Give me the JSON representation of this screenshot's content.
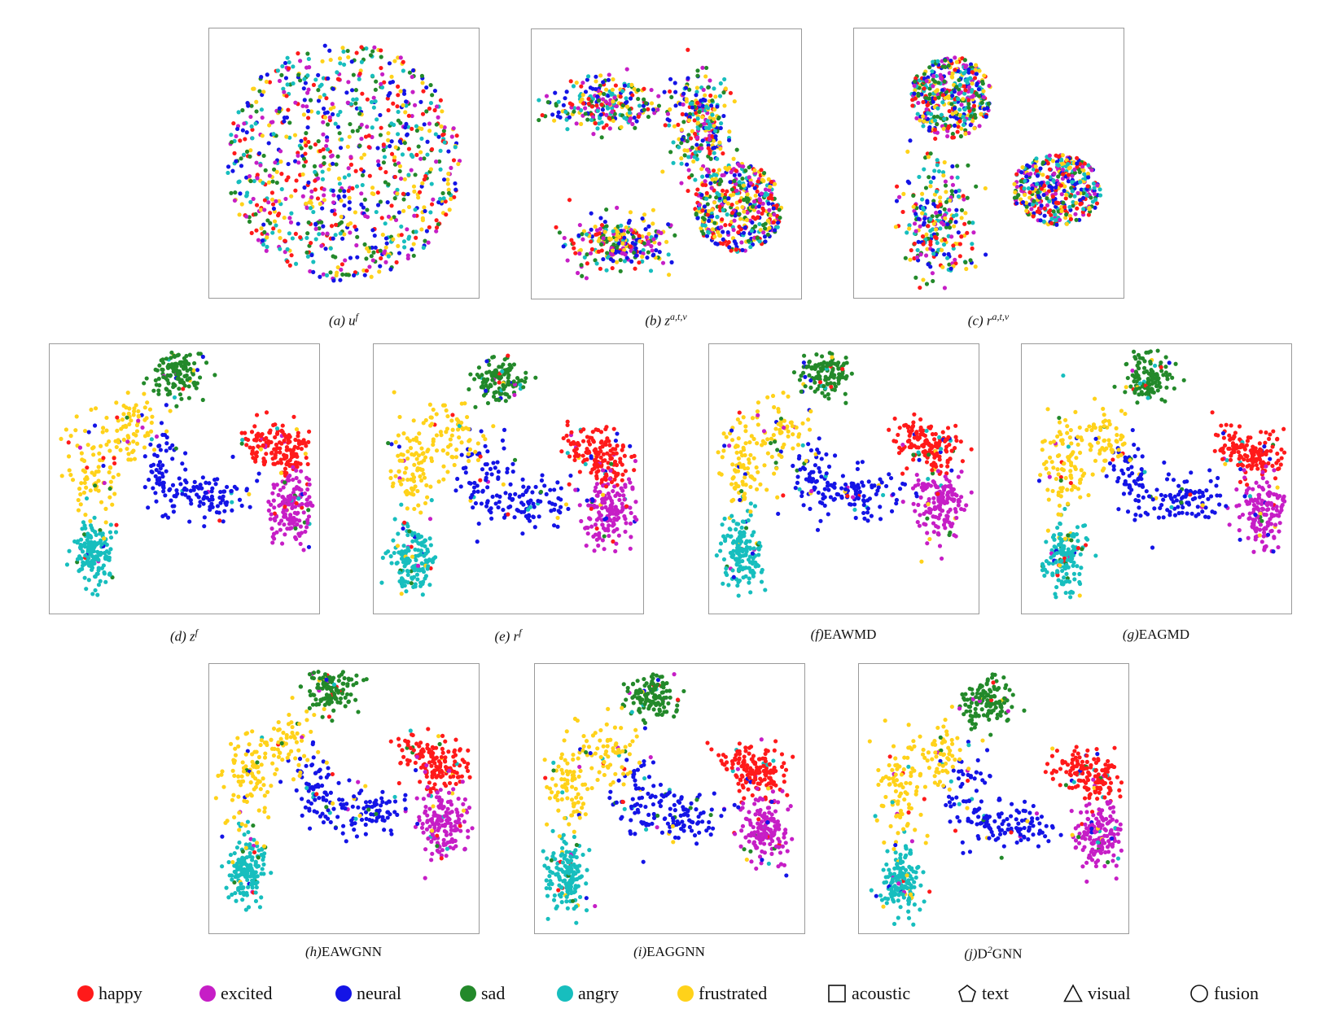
{
  "colors": {
    "happy": "#ff1a1a",
    "excited": "#c61ec6",
    "neural": "#1414e6",
    "sad": "#23892a",
    "angry": "#17bebe",
    "frustrated": "#ffd21a"
  },
  "chart_data": [
    {
      "id": "a",
      "type": "scatter",
      "letter": "(a)",
      "name_base": "u",
      "name_sup": "f",
      "layout": "uniform-blob",
      "classes": [
        "happy",
        "excited",
        "neural",
        "sad",
        "angry",
        "frustrated"
      ]
    },
    {
      "id": "b",
      "type": "scatter",
      "letter": "(b)",
      "name_base": "z",
      "name_sup": "a,t,v",
      "layout": "three-modality-clusters",
      "classes": [
        "happy",
        "excited",
        "neural",
        "sad",
        "angry",
        "frustrated"
      ]
    },
    {
      "id": "c",
      "type": "scatter",
      "letter": "(c)",
      "name_base": "r",
      "name_sup": "a,t,v",
      "layout": "three-modality-clusters",
      "classes": [
        "happy",
        "excited",
        "neural",
        "sad",
        "angry",
        "frustrated"
      ]
    },
    {
      "id": "d",
      "type": "scatter",
      "letter": "(d)",
      "name_base": "z",
      "name_sup": "f",
      "layout": "emotion-separated",
      "classes": [
        "happy",
        "excited",
        "neural",
        "sad",
        "angry",
        "frustrated"
      ]
    },
    {
      "id": "e",
      "type": "scatter",
      "letter": "(e)",
      "name_base": "r",
      "name_sup": "f",
      "layout": "emotion-separated",
      "classes": [
        "happy",
        "excited",
        "neural",
        "sad",
        "angry",
        "frustrated"
      ]
    },
    {
      "id": "f",
      "type": "scatter",
      "letter": "(f)",
      "name_base": "EAWMD",
      "name_sup": "",
      "layout": "emotion-separated",
      "classes": [
        "happy",
        "excited",
        "neural",
        "sad",
        "angry",
        "frustrated"
      ]
    },
    {
      "id": "g",
      "type": "scatter",
      "letter": "(g)",
      "name_base": "EAGMD",
      "name_sup": "",
      "layout": "emotion-separated",
      "classes": [
        "happy",
        "excited",
        "neural",
        "sad",
        "angry",
        "frustrated"
      ]
    },
    {
      "id": "h",
      "type": "scatter",
      "letter": "(h)",
      "name_base": "EAWGNN",
      "name_sup": "",
      "layout": "emotion-separated",
      "classes": [
        "happy",
        "excited",
        "neural",
        "sad",
        "angry",
        "frustrated"
      ]
    },
    {
      "id": "i",
      "type": "scatter",
      "letter": "(i)",
      "name_base": "EAGGNN",
      "name_sup": "",
      "layout": "emotion-separated",
      "classes": [
        "happy",
        "excited",
        "neural",
        "sad",
        "angry",
        "frustrated"
      ]
    },
    {
      "id": "j",
      "type": "scatter",
      "letter": "(j)",
      "name_base": "D",
      "name_sup": "2",
      "name_tail": "GNN",
      "layout": "emotion-separated",
      "classes": [
        "happy",
        "excited",
        "neural",
        "sad",
        "angry",
        "frustrated"
      ]
    }
  ],
  "legend": {
    "happy": "happy",
    "excited": "excited",
    "neural": "neural",
    "sad": "sad",
    "angry": "angry",
    "frustrated": "frustrated",
    "acoustic": "acoustic",
    "text": "text",
    "visual": "visual",
    "fusion": "fusion"
  }
}
